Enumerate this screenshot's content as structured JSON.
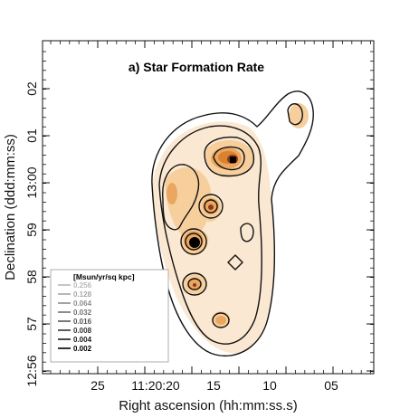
{
  "chart_data": {
    "type": "contour",
    "title": "a) Star Formation Rate",
    "xlabel": "Right ascension (hh:mm:ss.s)",
    "ylabel": "Declination (ddd:mm:ss)",
    "x_ticks": [
      "25",
      "11:20:20",
      "15",
      "10",
      "05"
    ],
    "y_ticks": [
      "12:56",
      "57",
      "58",
      "59",
      "13:00",
      "01",
      "02"
    ],
    "legend": {
      "title": "[Msun/yr/sq kpc]",
      "levels": [
        {
          "label": "0.256",
          "color": "#b8b8b8"
        },
        {
          "label": "0.128",
          "color": "#a6a6a6"
        },
        {
          "label": "0.064",
          "color": "#8c8c8c"
        },
        {
          "label": "0.032",
          "color": "#707070"
        },
        {
          "label": "0.016",
          "color": "#555555"
        },
        {
          "label": "0.008",
          "color": "#333333"
        },
        {
          "label": "0.004",
          "color": "#1a1a1a"
        },
        {
          "label": "0.002",
          "color": "#000000"
        }
      ]
    },
    "colors": {
      "pale": "#fbe8d2",
      "light": "#f6cf9d",
      "mid": "#eba760",
      "orange": "#d9822f",
      "dark": "#8a3a1a",
      "core": "#000000"
    }
  }
}
